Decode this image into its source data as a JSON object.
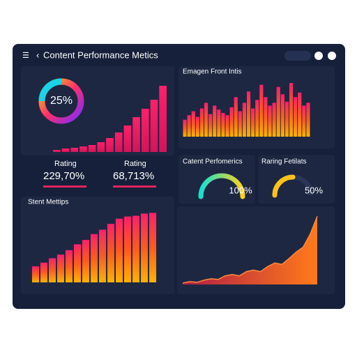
{
  "header": {
    "title": "Content Performance Metics"
  },
  "kpis": [
    {
      "label": "Rating",
      "value": "229,70%"
    },
    {
      "label": "Rating",
      "value": "68,713%"
    }
  ],
  "chart_data": [
    {
      "type": "donut",
      "values": [
        25
      ],
      "value_labels": [
        "25%"
      ]
    },
    {
      "type": "bar",
      "values": [
        3,
        5,
        6,
        8,
        10,
        14,
        20,
        28,
        38,
        50,
        62,
        75,
        95
      ],
      "ylim": [
        0,
        100
      ]
    },
    {
      "type": "bar",
      "title": "Emagen Front Intis",
      "values": [
        30,
        38,
        45,
        35,
        50,
        60,
        40,
        55,
        48,
        42,
        38,
        52,
        70,
        45,
        60,
        80,
        50,
        65,
        92,
        70,
        55,
        60,
        88,
        75,
        62,
        95,
        70,
        78,
        55,
        60
      ],
      "ylim": [
        0,
        100
      ]
    },
    {
      "type": "gauge",
      "title": "Catent Perfomerics",
      "values": [
        100
      ],
      "value_labels": [
        "100%"
      ]
    },
    {
      "type": "gauge",
      "title": "Raring Fetilats",
      "values": [
        50
      ],
      "value_labels": [
        "50%"
      ]
    },
    {
      "type": "bar",
      "title": "Stent Mettips",
      "values": [
        22,
        27,
        33,
        38,
        44,
        52,
        58,
        66,
        72,
        80,
        87,
        90,
        91,
        94,
        95
      ],
      "ylim": [
        0,
        100
      ]
    },
    {
      "type": "area",
      "values": [
        2,
        4,
        3,
        6,
        8,
        7,
        12,
        14,
        12,
        18,
        20,
        18,
        25,
        30,
        28,
        36,
        45,
        52,
        70,
        95
      ],
      "ylim": [
        0,
        100
      ]
    }
  ]
}
